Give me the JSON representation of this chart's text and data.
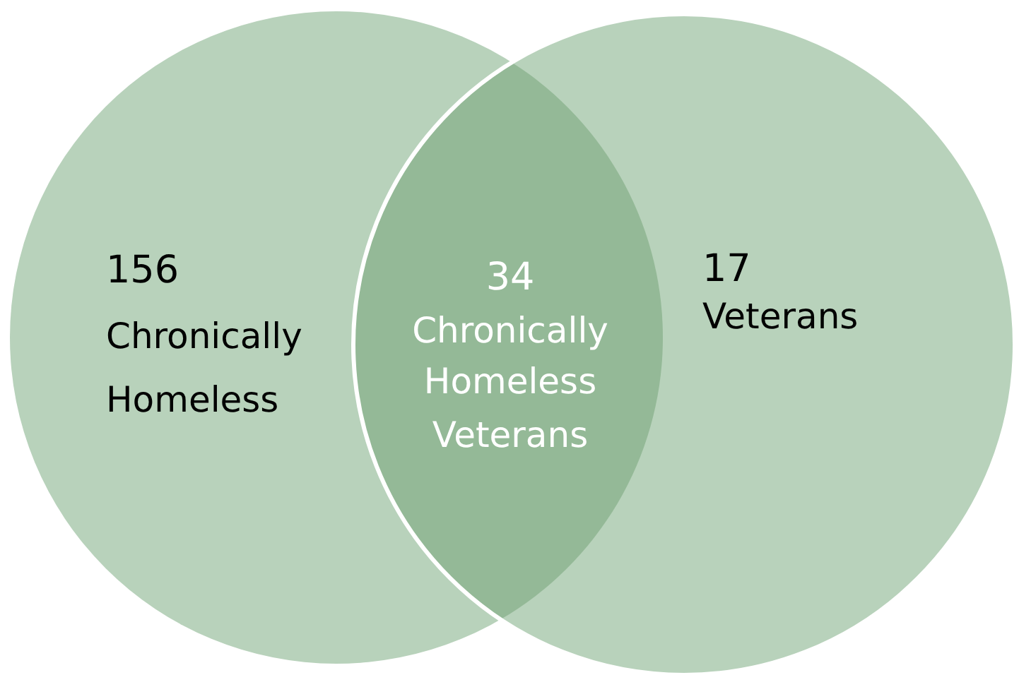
{
  "chart_data": {
    "type": "other",
    "categories": [
      "Chronically Homeless",
      "Chronically Homeless Veterans",
      "Veterans"
    ],
    "values": [
      156,
      34,
      17
    ],
    "colors": [
      "#b8d2bb",
      "#94b997",
      "#b8d2bb"
    ],
    "data_labels": true
  }
}
